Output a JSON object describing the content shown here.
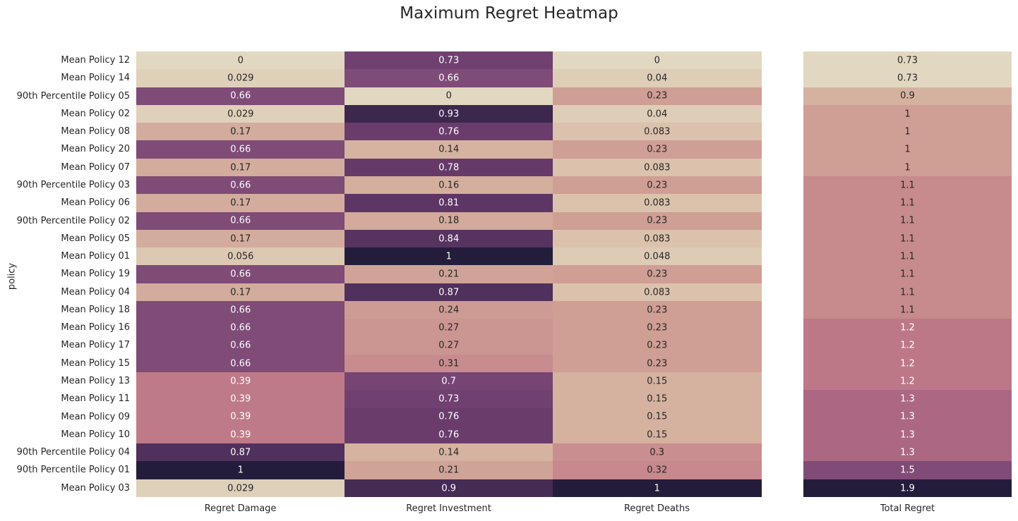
{
  "chart_data": {
    "type": "heatmap",
    "title": "Maximum Regret Heatmap",
    "ylabel": "policy",
    "rows": [
      "Mean Policy 12",
      "Mean Policy 14",
      "90th Percentile Policy 05",
      "Mean Policy 02",
      "Mean Policy 08",
      "Mean Policy 20",
      "Mean Policy 07",
      "90th Percentile Policy 03",
      "Mean Policy 06",
      "90th Percentile Policy 02",
      "Mean Policy 05",
      "Mean Policy 01",
      "Mean Policy 19",
      "Mean Policy 04",
      "Mean Policy 18",
      "Mean Policy 16",
      "Mean Policy 17",
      "Mean Policy 15",
      "Mean Policy 13",
      "Mean Policy 11",
      "Mean Policy 09",
      "Mean Policy 10",
      "90th Percentile Policy 04",
      "90th Percentile Policy 01",
      "Mean Policy 03"
    ],
    "main_columns": [
      "Regret Damage",
      "Regret Investment",
      "Regret Deaths"
    ],
    "main_values": [
      [
        0,
        0.73,
        0
      ],
      [
        0.029,
        0.66,
        0.04
      ],
      [
        0.66,
        0,
        0.23
      ],
      [
        0.029,
        0.93,
        0.04
      ],
      [
        0.17,
        0.76,
        0.083
      ],
      [
        0.66,
        0.14,
        0.23
      ],
      [
        0.17,
        0.78,
        0.083
      ],
      [
        0.66,
        0.16,
        0.23
      ],
      [
        0.17,
        0.81,
        0.083
      ],
      [
        0.66,
        0.18,
        0.23
      ],
      [
        0.17,
        0.84,
        0.083
      ],
      [
        0.056,
        1,
        0.048
      ],
      [
        0.66,
        0.21,
        0.23
      ],
      [
        0.17,
        0.87,
        0.083
      ],
      [
        0.66,
        0.24,
        0.23
      ],
      [
        0.66,
        0.27,
        0.23
      ],
      [
        0.66,
        0.27,
        0.23
      ],
      [
        0.66,
        0.31,
        0.23
      ],
      [
        0.39,
        0.7,
        0.15
      ],
      [
        0.39,
        0.73,
        0.15
      ],
      [
        0.39,
        0.76,
        0.15
      ],
      [
        0.39,
        0.76,
        0.15
      ],
      [
        0.87,
        0.14,
        0.3
      ],
      [
        1,
        0.21,
        0.32
      ],
      [
        0.029,
        0.9,
        1
      ]
    ],
    "main_labels": [
      [
        "0",
        "0.73",
        "0"
      ],
      [
        "0.029",
        "0.66",
        "0.04"
      ],
      [
        "0.66",
        "0",
        "0.23"
      ],
      [
        "0.029",
        "0.93",
        "0.04"
      ],
      [
        "0.17",
        "0.76",
        "0.083"
      ],
      [
        "0.66",
        "0.14",
        "0.23"
      ],
      [
        "0.17",
        "0.78",
        "0.083"
      ],
      [
        "0.66",
        "0.16",
        "0.23"
      ],
      [
        "0.17",
        "0.81",
        "0.083"
      ],
      [
        "0.66",
        "0.18",
        "0.23"
      ],
      [
        "0.17",
        "0.84",
        "0.083"
      ],
      [
        "0.056",
        "1",
        "0.048"
      ],
      [
        "0.66",
        "0.21",
        "0.23"
      ],
      [
        "0.17",
        "0.87",
        "0.083"
      ],
      [
        "0.66",
        "0.24",
        "0.23"
      ],
      [
        "0.66",
        "0.27",
        "0.23"
      ],
      [
        "0.66",
        "0.27",
        "0.23"
      ],
      [
        "0.66",
        "0.31",
        "0.23"
      ],
      [
        "0.39",
        "0.7",
        "0.15"
      ],
      [
        "0.39",
        "0.73",
        "0.15"
      ],
      [
        "0.39",
        "0.76",
        "0.15"
      ],
      [
        "0.39",
        "0.76",
        "0.15"
      ],
      [
        "0.87",
        "0.14",
        "0.3"
      ],
      [
        "1",
        "0.21",
        "0.32"
      ],
      [
        "0.029",
        "0.9",
        "1"
      ]
    ],
    "total_column": "Total Regret",
    "total_values": [
      0.73,
      0.73,
      0.9,
      1,
      1,
      1,
      1,
      1.1,
      1.1,
      1.1,
      1.1,
      1.1,
      1.1,
      1.1,
      1.1,
      1.2,
      1.2,
      1.2,
      1.2,
      1.3,
      1.3,
      1.3,
      1.3,
      1.5,
      1.9
    ],
    "total_labels": [
      "0.73",
      "0.73",
      "0.9",
      "1",
      "1",
      "1",
      "1",
      "1.1",
      "1.1",
      "1.1",
      "1.1",
      "1.1",
      "1.1",
      "1.1",
      "1.1",
      "1.2",
      "1.2",
      "1.2",
      "1.2",
      "1.3",
      "1.3",
      "1.3",
      "1.3",
      "1.5",
      "1.9"
    ],
    "colorbar": false,
    "colormap": [
      "#e2d8c1",
      "#d7b7a2",
      "#cd9993",
      "#c27d88",
      "#a96682",
      "#87507a",
      "#6c3d6e",
      "#4f2f5b",
      "#231d3b"
    ]
  }
}
